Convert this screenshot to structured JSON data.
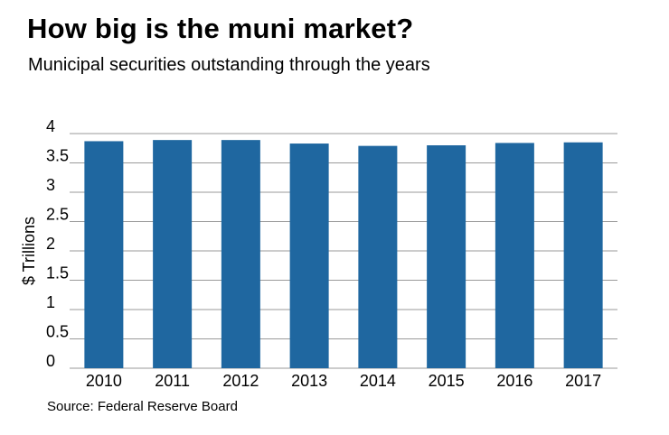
{
  "header": {
    "title": "How big is the muni market?",
    "subtitle": "Municipal securities outstanding through the years"
  },
  "footer": {
    "source": "Source: Federal Reserve Board"
  },
  "colors": {
    "bar": "#1f67a0",
    "grid": "#9a9a9a",
    "text": "#000000"
  },
  "chart_data": {
    "type": "bar",
    "title": "How big is the muni market?",
    "subtitle": "Municipal securities outstanding through the years",
    "xlabel": "",
    "ylabel": "$ Trillions",
    "ylim": [
      0,
      4
    ],
    "yticks": [
      0,
      0.5,
      1,
      1.5,
      2,
      2.5,
      3,
      3.5,
      4
    ],
    "ytick_labels": [
      "0",
      "0.5",
      "1",
      "1.5",
      "2",
      "2.5",
      "3",
      "3.5",
      "4"
    ],
    "grid": true,
    "categories": [
      "2010",
      "2011",
      "2012",
      "2013",
      "2014",
      "2015",
      "2016",
      "2017"
    ],
    "values": [
      3.87,
      3.89,
      3.89,
      3.83,
      3.79,
      3.8,
      3.84,
      3.85
    ]
  }
}
